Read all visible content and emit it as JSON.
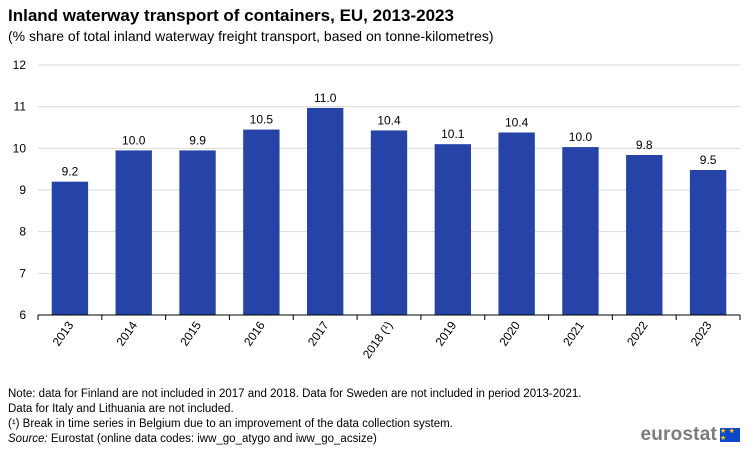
{
  "chart_data": {
    "type": "bar",
    "title": "Inland waterway transport of containers, EU, 2013-2023",
    "subtitle": "(% share of total inland waterway freight transport, based on tonne-kilometres)",
    "categories": [
      "2013",
      "2014",
      "2015",
      "2016",
      "2017",
      "2018 (¹)",
      "2019",
      "2020",
      "2021",
      "2022",
      "2023"
    ],
    "values": [
      9.2,
      10.0,
      9.9,
      10.5,
      11.0,
      10.4,
      10.1,
      10.4,
      10.0,
      9.8,
      9.5
    ],
    "data_labels": [
      "9.2",
      "10.0",
      "9.9",
      "10.5",
      "11.0",
      "10.4",
      "10.1",
      "10.4",
      "10.0",
      "9.8",
      "9.5"
    ],
    "plot_values": [
      9.2,
      9.95,
      9.95,
      10.45,
      10.97,
      10.43,
      10.1,
      10.38,
      10.03,
      9.84,
      9.48
    ],
    "yticks": [
      "6",
      "7",
      "8",
      "9",
      "10",
      "11",
      "12"
    ],
    "ylim": [
      6,
      12
    ],
    "xlabel": "",
    "ylabel": "",
    "grid": true,
    "bar_color": "#2644a8"
  },
  "notes": {
    "line1": "Note: data for Finland are not included in 2017 and 2018. Data for Sweden are not included in period 2013-2021.",
    "line2": "Data for Italy  and Lithuania  are not included.",
    "line3": "(¹) Break in time series in Belgium due to an improvement of the data collection system.",
    "source_label": "Source:",
    "source_text": " Eurostat (online data codes: iww_go_atygo and iww_go_acsize)"
  },
  "logo": {
    "text": "eurostat",
    "flag_stars": "★ ★ ★"
  }
}
